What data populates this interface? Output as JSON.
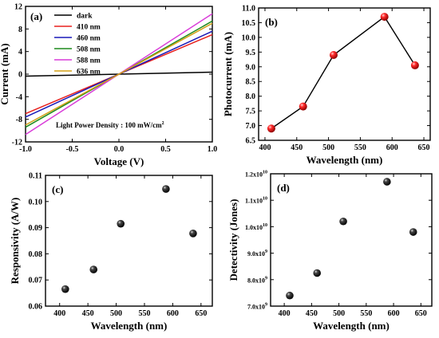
{
  "chart_data": [
    {
      "panel": "(a)",
      "type": "line",
      "xlabel": "Voltage (V)",
      "ylabel": "Current (mA)",
      "xlim": [
        -1.0,
        1.0
      ],
      "ylim": [
        -12,
        12
      ],
      "xticks": [
        "-1.0",
        "-0.5",
        "0.0",
        "0.5",
        "1.0"
      ],
      "yticks": [
        "-12",
        "-8",
        "-4",
        "0",
        "4",
        "8",
        "12"
      ],
      "annotation": "Light Power Density : 100 mW/cm²",
      "legend": "top-left",
      "series": [
        {
          "name": "dark",
          "color": "#000000",
          "x": [
            -1.0,
            1.0
          ],
          "y": [
            -0.35,
            0.35
          ]
        },
        {
          "name": "410 nm",
          "color": "#e8211e",
          "x": [
            -1.0,
            1.0
          ],
          "y": [
            -7.0,
            7.0
          ]
        },
        {
          "name": "460 nm",
          "color": "#1a1ab8",
          "x": [
            -1.0,
            1.0
          ],
          "y": [
            -7.6,
            7.6
          ]
        },
        {
          "name": "508 nm",
          "color": "#1d8a1d",
          "x": [
            -1.0,
            1.0
          ],
          "y": [
            -9.4,
            9.4
          ]
        },
        {
          "name": "588 nm",
          "color": "#d93cd9",
          "x": [
            -1.0,
            1.0
          ],
          "y": [
            -10.7,
            10.7
          ]
        },
        {
          "name": "636 nm",
          "color": "#d4a017",
          "x": [
            -1.0,
            1.0
          ],
          "y": [
            -9.0,
            9.0
          ]
        }
      ]
    },
    {
      "panel": "(b)",
      "type": "line",
      "xlabel": "Wavelength (nm)",
      "ylabel": "Photocurrent (mA)",
      "xlim": [
        390,
        660
      ],
      "ylim": [
        6.5,
        11.0
      ],
      "xticks": [
        "400",
        "450",
        "500",
        "550",
        "600",
        "650"
      ],
      "yticks": [
        "6.5",
        "7.0",
        "7.5",
        "8.0",
        "8.5",
        "9.0",
        "9.5",
        "10.0",
        "10.5",
        "11.0"
      ],
      "marker_color": "#e01515",
      "x": [
        410,
        460,
        508,
        588,
        636
      ],
      "y": [
        6.9,
        7.65,
        9.4,
        10.7,
        9.05
      ]
    },
    {
      "panel": "(c)",
      "type": "scatter",
      "xlabel": "Wavelength (nm)",
      "ylabel": "Responsivity (A/W)",
      "xlim": [
        375,
        670
      ],
      "ylim": [
        0.06,
        0.11
      ],
      "xticks": [
        "400",
        "450",
        "500",
        "550",
        "600",
        "650"
      ],
      "yticks": [
        "0.06",
        "0.07",
        "0.08",
        "0.09",
        "0.10",
        "0.11"
      ],
      "marker_color": "#000000",
      "x": [
        410,
        460,
        508,
        588,
        636
      ],
      "y": [
        0.0665,
        0.074,
        0.0915,
        0.1048,
        0.0878
      ]
    },
    {
      "panel": "(d)",
      "type": "scatter",
      "xlabel": "Wavelength (nm)",
      "ylabel": "Detectivity (Jones)",
      "xlim": [
        375,
        670
      ],
      "ylim": [
        7000000000.0,
        12000000000.0
      ],
      "yticks": [
        "7.0x10⁹",
        "8.0x10⁹",
        "9.0x10⁹",
        "1.0x10¹⁰",
        "1.1x10¹⁰",
        "1.2x10¹⁰"
      ],
      "xticks": [
        "400",
        "450",
        "500",
        "550",
        "600",
        "650"
      ],
      "marker_color": "#000000",
      "x": [
        410,
        460,
        508,
        588,
        636
      ],
      "y": [
        7400000000.0,
        8250000000.0,
        10200000000.0,
        11700000000.0,
        9800000000.0
      ]
    }
  ]
}
